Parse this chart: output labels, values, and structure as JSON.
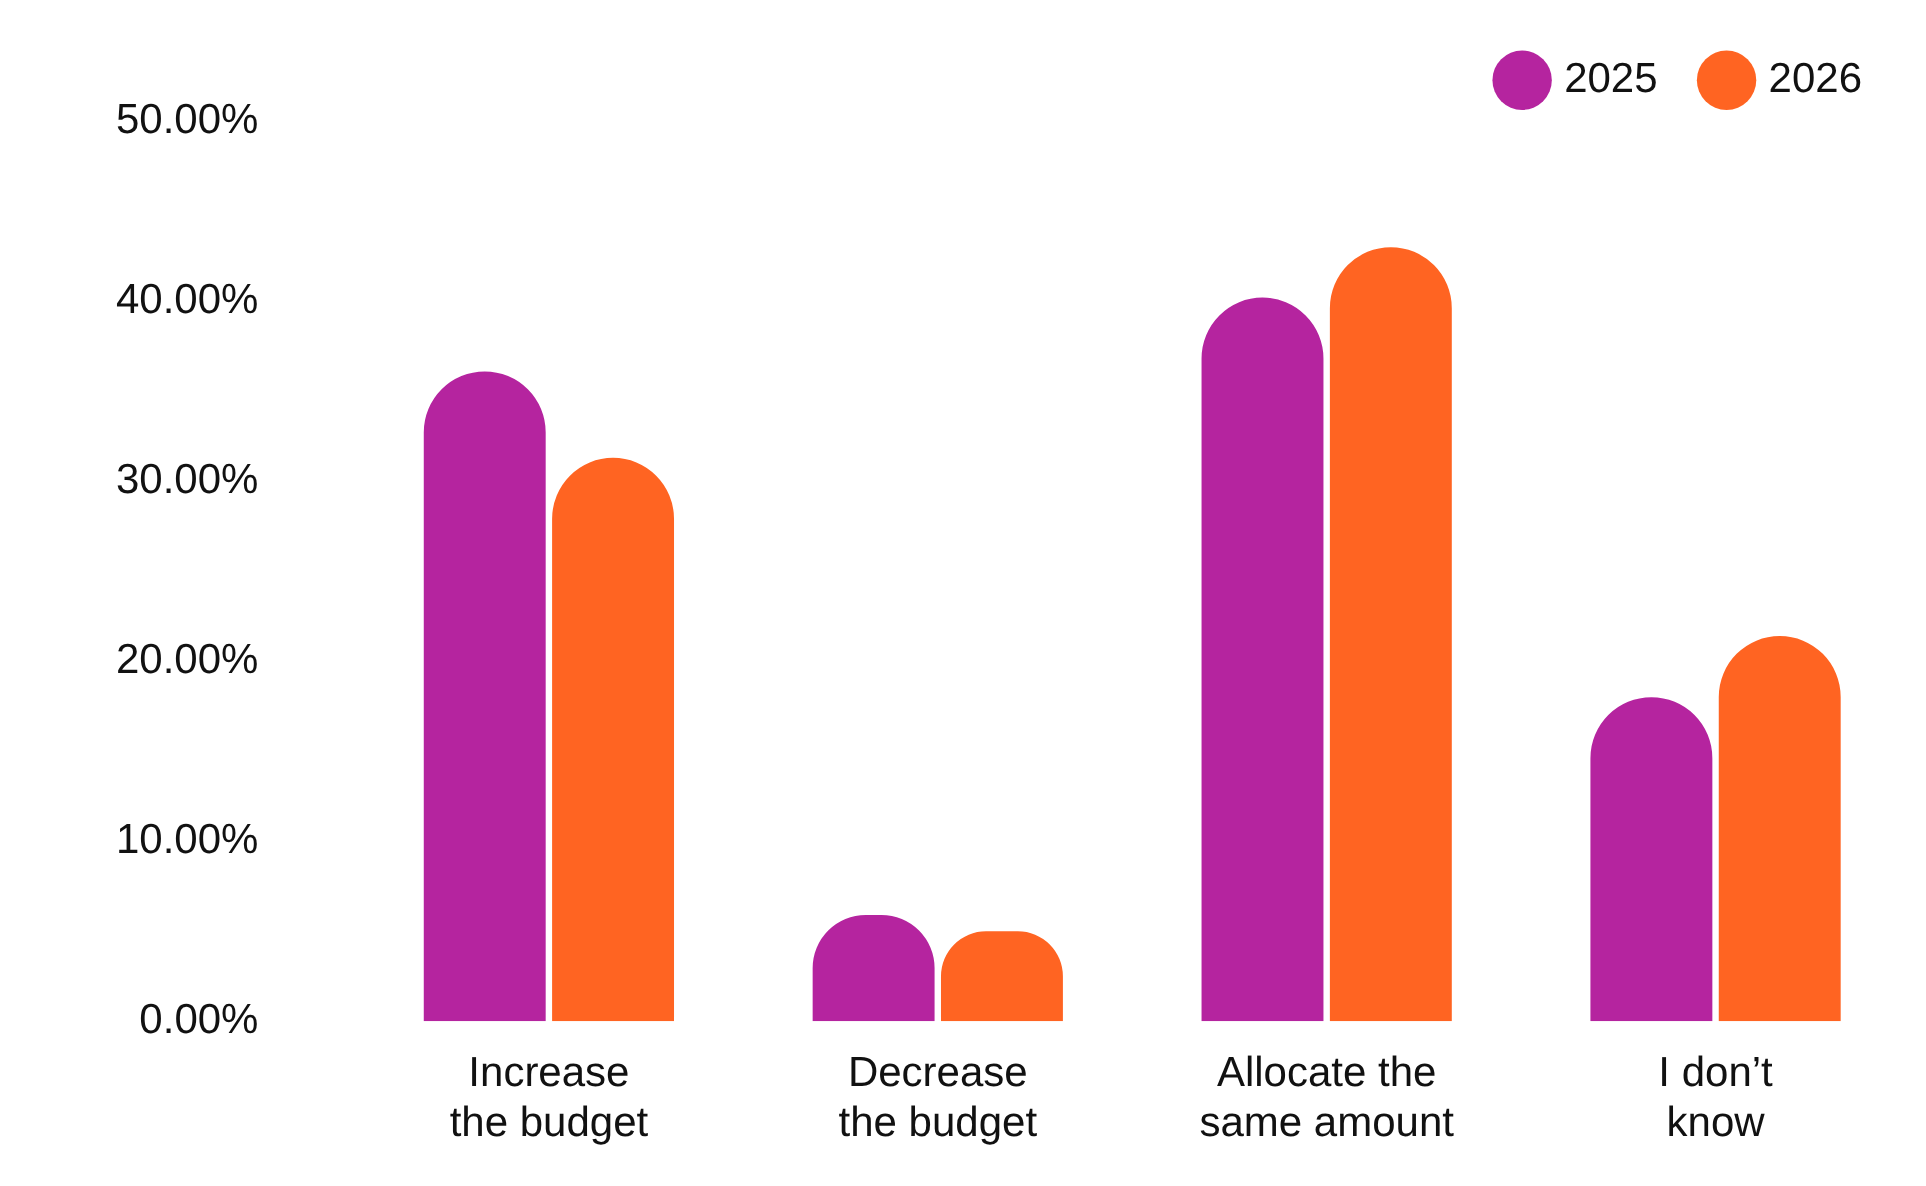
{
  "chart_data": {
    "type": "bar",
    "categories": [
      "Increase the budget",
      "Decrease the budget",
      "Allocate the same amount",
      "I don’t know"
    ],
    "series": [
      {
        "name": "2025",
        "color": "#b5249f",
        "values": [
          36.1,
          5.9,
          40.2,
          18.0
        ]
      },
      {
        "name": "2026",
        "color": "#ff6422",
        "values": [
          31.3,
          5.0,
          43.0,
          21.4
        ]
      }
    ],
    "ylim": [
      0,
      50
    ],
    "yticks": [
      {
        "value": 0,
        "label": "0.00%"
      },
      {
        "value": 10,
        "label": "10.00%"
      },
      {
        "value": 20,
        "label": "20.00%"
      },
      {
        "value": 30,
        "label": "30.00%"
      },
      {
        "value": 40,
        "label": "40.00%"
      },
      {
        "value": 50,
        "label": "50.00%"
      }
    ],
    "grid": false,
    "legend": "top right"
  }
}
